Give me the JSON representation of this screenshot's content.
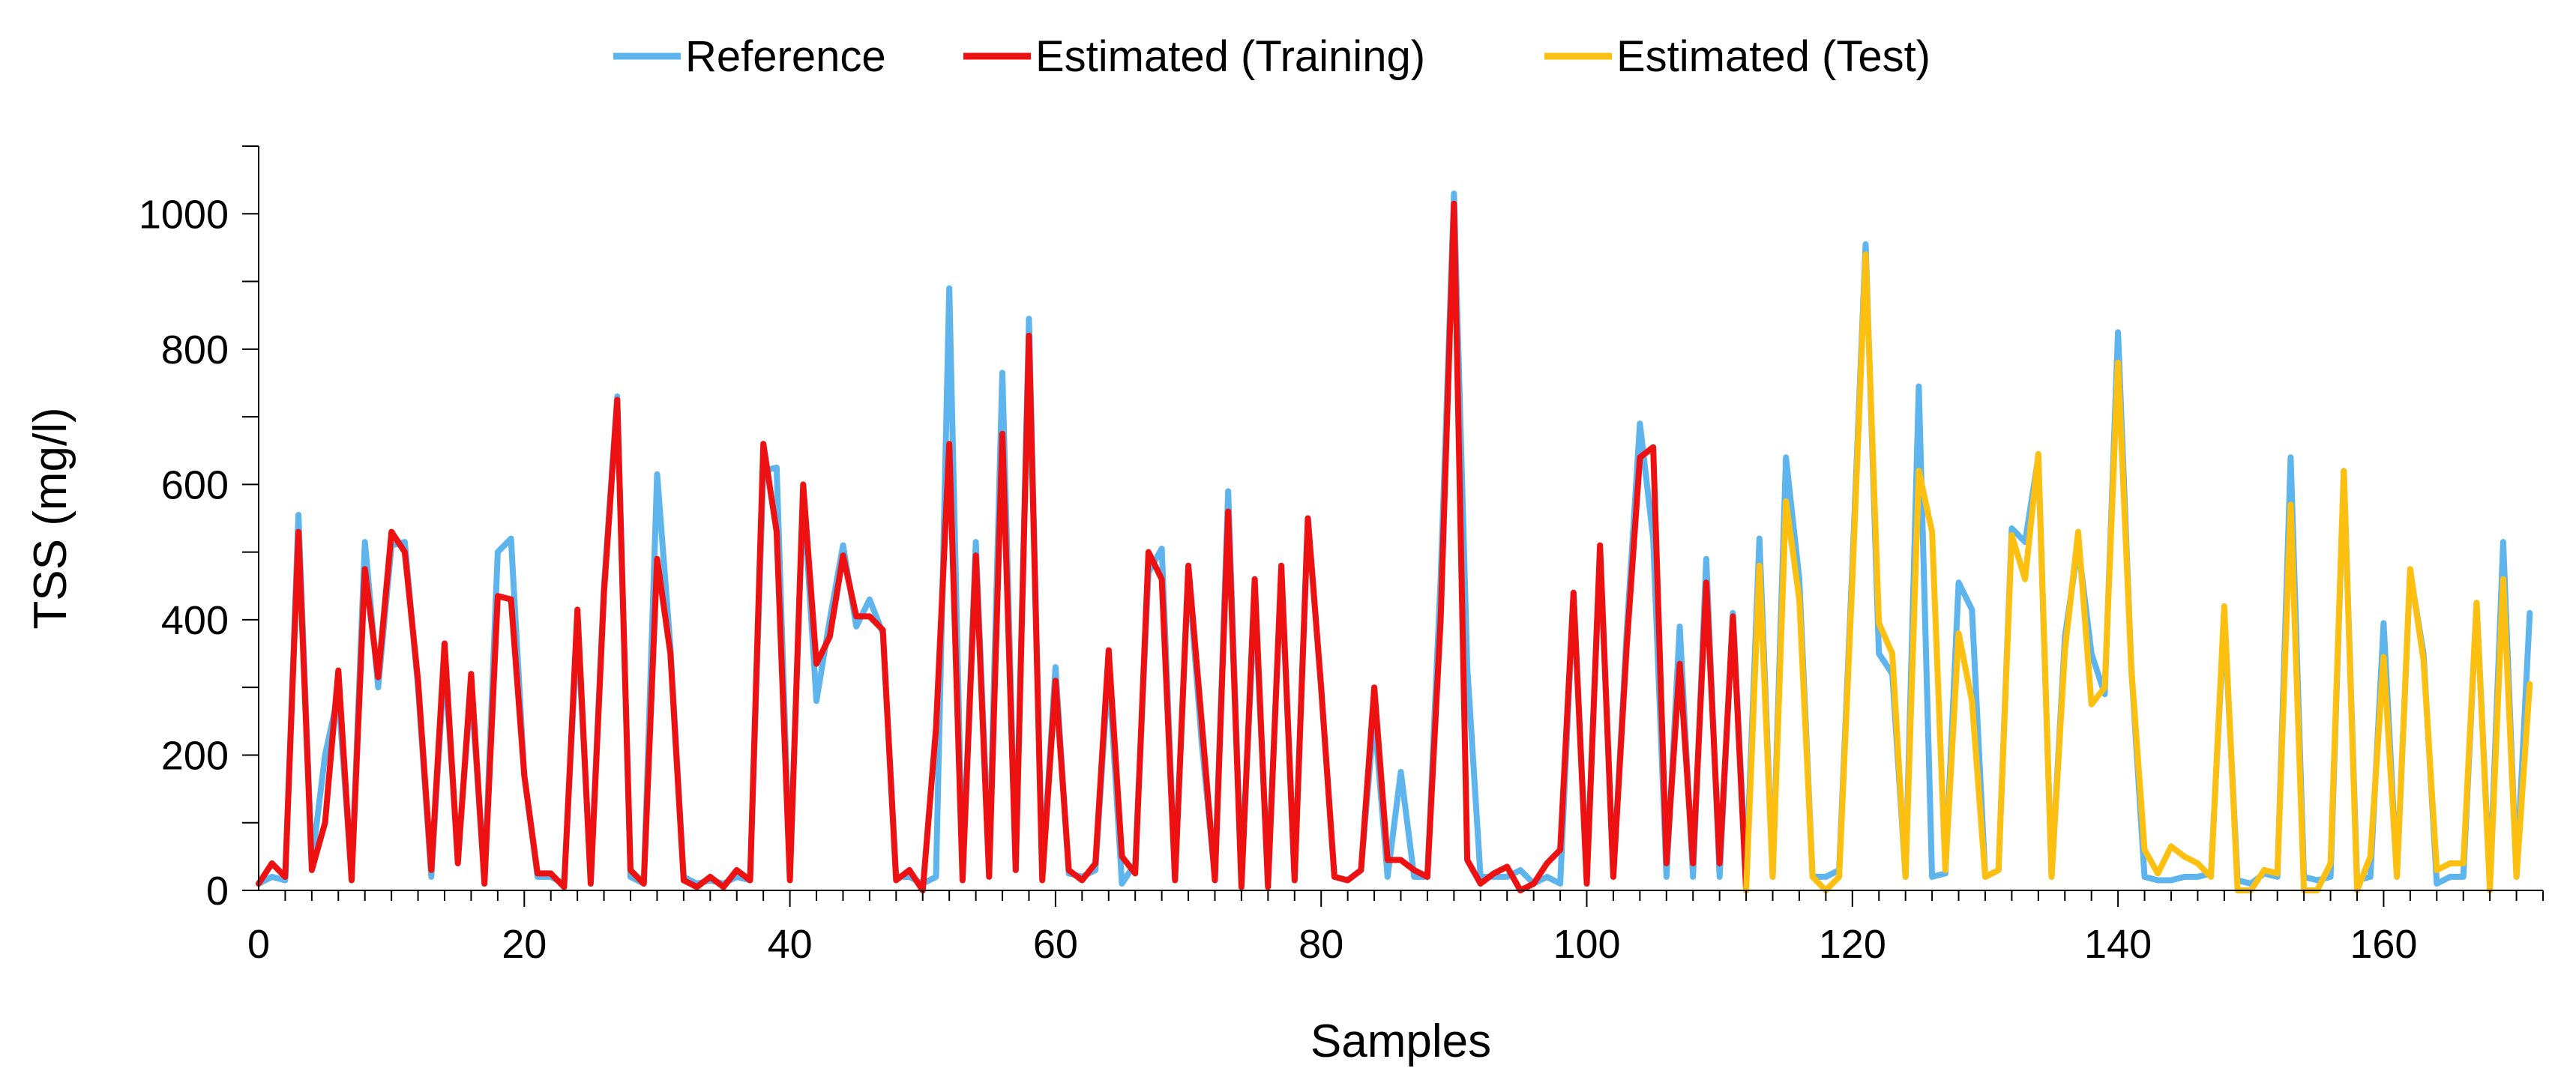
{
  "chart_data": {
    "type": "line",
    "title": "",
    "xlabel": "Samples",
    "ylabel": "TSS (mg/l)",
    "xlim": [
      0,
      172
    ],
    "ylim": [
      0,
      1100
    ],
    "x_ticks": [
      0,
      20,
      40,
      60,
      80,
      100,
      120,
      140,
      160
    ],
    "y_ticks": [
      0,
      200,
      400,
      600,
      800,
      1000
    ],
    "grid": false,
    "legend_position": "top-center",
    "series": [
      {
        "name": "Reference",
        "color": "#5eb4ec",
        "x_start": 0,
        "values": [
          10,
          20,
          15,
          555,
          40,
          200,
          290,
          20,
          515,
          300,
          510,
          515,
          300,
          20,
          340,
          50,
          300,
          15,
          500,
          520,
          170,
          20,
          20,
          10,
          390,
          20,
          450,
          730,
          20,
          10,
          615,
          360,
          20,
          10,
          15,
          10,
          20,
          15,
          620,
          625,
          20,
          590,
          280,
          400,
          510,
          390,
          430,
          380,
          20,
          20,
          10,
          20,
          890,
          20,
          515,
          40,
          765,
          30,
          845,
          20,
          330,
          25,
          20,
          30,
          330,
          10,
          40,
          470,
          505,
          20,
          470,
          220,
          20,
          590,
          15,
          430,
          20,
          470,
          15,
          550,
          300,
          20,
          15,
          30,
          260,
          20,
          175,
          20,
          20,
          460,
          1030,
          330,
          20,
          20,
          20,
          30,
          10,
          20,
          10,
          440,
          20,
          500,
          20,
          380,
          690,
          520,
          20,
          390,
          20,
          490,
          20,
          410,
          20,
          520,
          20,
          640,
          460,
          20,
          20,
          30,
          480,
          955,
          350,
          320,
          20,
          745,
          20,
          25,
          455,
          415,
          20,
          30,
          535,
          515,
          640,
          20,
          375,
          510,
          350,
          290,
          825,
          330,
          20,
          15,
          15,
          20,
          20,
          25,
          405,
          15,
          10,
          25,
          20,
          640,
          20,
          15,
          20,
          620,
          15,
          20,
          395,
          20,
          470,
          350,
          10,
          20,
          20,
          425,
          10,
          515,
          20,
          410
        ],
        "visible_from": 0
      },
      {
        "name": "Estimated (Training)",
        "color": "#ee1111",
        "x_start": 0,
        "values": [
          10,
          40,
          20,
          530,
          30,
          100,
          325,
          15,
          475,
          315,
          530,
          500,
          310,
          30,
          365,
          40,
          320,
          10,
          435,
          430,
          170,
          25,
          25,
          5,
          415,
          10,
          440,
          725,
          30,
          10,
          490,
          350,
          15,
          5,
          20,
          5,
          30,
          15,
          660,
          530,
          15,
          600,
          335,
          375,
          495,
          405,
          405,
          385,
          15,
          30,
          0,
          240,
          660,
          15,
          495,
          20,
          675,
          30,
          820,
          15,
          310,
          30,
          15,
          40,
          355,
          50,
          25,
          500,
          460,
          15,
          480,
          250,
          15,
          560,
          5,
          460,
          5,
          480,
          15,
          550,
          300,
          20,
          15,
          30,
          300,
          45,
          45,
          30,
          20,
          400,
          1015,
          45,
          10,
          25,
          35,
          0,
          10,
          40,
          60,
          440,
          10,
          510,
          20,
          360,
          640,
          655,
          40,
          335,
          40,
          455,
          40,
          405,
          0
        ]
      },
      {
        "name": "Estimated (Test)",
        "color": "#fdc010",
        "x_start": 112,
        "values": [
          0,
          480,
          20,
          575,
          430,
          20,
          0,
          20,
          460,
          940,
          395,
          350,
          20,
          620,
          530,
          30,
          380,
          280,
          20,
          30,
          525,
          460,
          645,
          20,
          355,
          530,
          275,
          300,
          780,
          330,
          60,
          25,
          65,
          50,
          40,
          20,
          420,
          0,
          0,
          30,
          25,
          570,
          0,
          0,
          40,
          620,
          0,
          50,
          345,
          20,
          475,
          340,
          30,
          40,
          40,
          425,
          0,
          460,
          20,
          305
        ]
      }
    ]
  }
}
